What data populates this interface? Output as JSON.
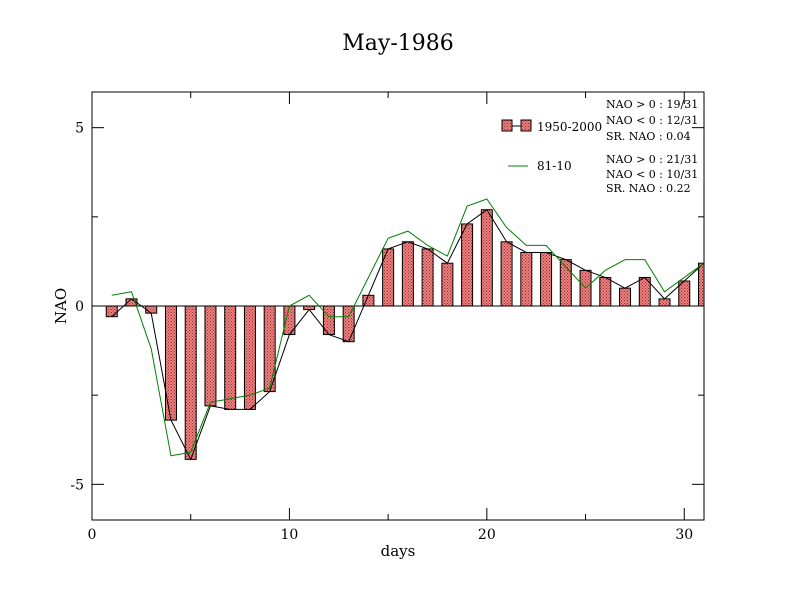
{
  "chart_data": {
    "type": "bar",
    "title": "May-1986",
    "xlabel": "days",
    "ylabel": "NAO",
    "xlim": [
      0,
      31
    ],
    "ylim": [
      -6,
      6
    ],
    "xticks": [
      0,
      10,
      20,
      30
    ],
    "yticks": [
      -5,
      0,
      5
    ],
    "x": [
      1,
      2,
      3,
      4,
      5,
      6,
      7,
      8,
      9,
      10,
      11,
      12,
      13,
      14,
      15,
      16,
      17,
      18,
      19,
      20,
      21,
      22,
      23,
      24,
      25,
      26,
      27,
      28,
      29,
      30,
      31
    ],
    "series": [
      {
        "name": "1950-2000",
        "kind": "bar",
        "color": "#f08080",
        "values": [
          -0.3,
          0.2,
          -0.2,
          -3.2,
          -4.3,
          -2.8,
          -2.9,
          -2.9,
          -2.4,
          -0.8,
          -0.1,
          -0.8,
          -1.0,
          0.3,
          1.6,
          1.8,
          1.6,
          1.2,
          2.3,
          2.7,
          1.8,
          1.5,
          1.5,
          1.3,
          1.0,
          0.8,
          0.5,
          0.8,
          0.2,
          0.7,
          1.2
        ]
      },
      {
        "name": "81-10",
        "kind": "line",
        "color": "#008000",
        "values": [
          0.3,
          0.4,
          -1.2,
          -4.2,
          -4.1,
          -2.7,
          -2.6,
          -2.5,
          -2.3,
          0.0,
          0.3,
          -0.3,
          -0.3,
          0.8,
          1.9,
          2.1,
          1.7,
          1.4,
          2.8,
          3.0,
          2.2,
          1.7,
          1.7,
          1.1,
          0.5,
          1.0,
          1.3,
          1.3,
          0.4,
          0.8,
          1.2
        ]
      }
    ],
    "stats": [
      {
        "nao_pos": "NAO > 0 : 19/31",
        "nao_neg": "NAO < 0 : 12/31",
        "sr": "SR. NAO :  0.04"
      },
      {
        "nao_pos": "NAO > 0 : 21/31",
        "nao_neg": "NAO < 0 : 10/31",
        "sr": "SR. NAO :  0.22"
      }
    ],
    "legend_position": "top-right",
    "grid": false
  }
}
